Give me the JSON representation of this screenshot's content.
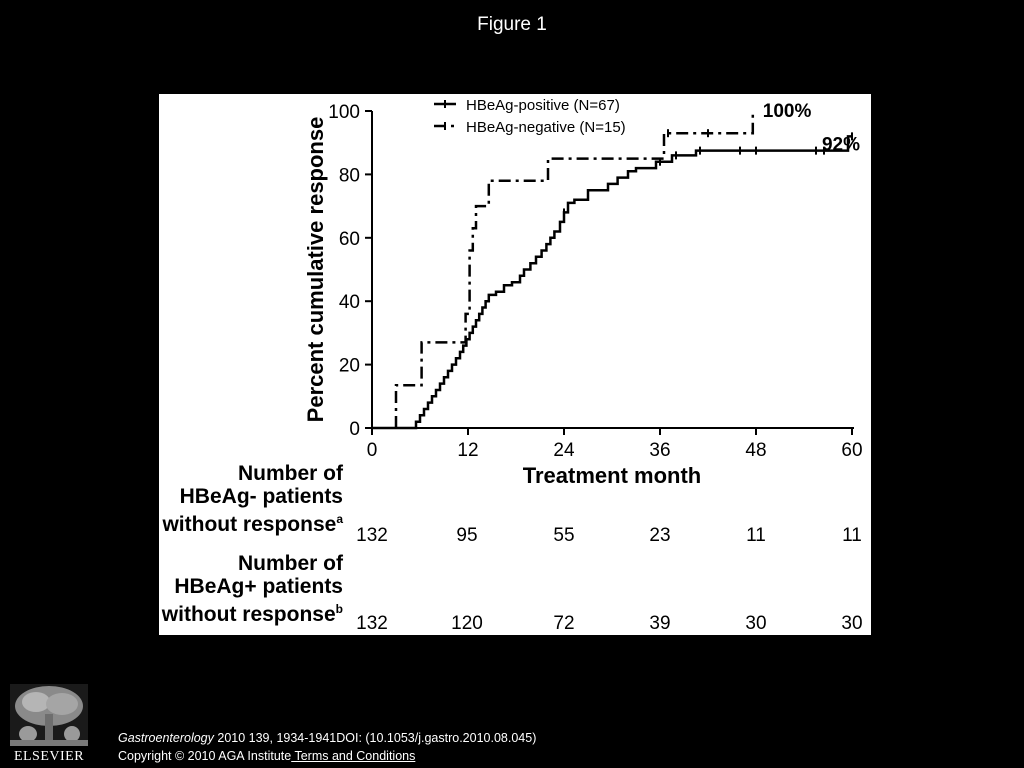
{
  "slide": {
    "title": "Figure 1"
  },
  "chart_data": {
    "type": "line",
    "xlabel": "Treatment month",
    "ylabel": "Percent cumulative response",
    "xlim": [
      0,
      60
    ],
    "ylim": [
      0,
      100
    ],
    "x_ticks": [
      "0",
      "12",
      "24",
      "36",
      "48",
      "60"
    ],
    "y_ticks": [
      "0",
      "20",
      "40",
      "60",
      "80",
      "100"
    ],
    "legend_position": "top-left",
    "series": [
      {
        "name": "HBeAg-positive (N=67)",
        "style": "solid",
        "end_label": "92%",
        "points": [
          [
            0,
            0
          ],
          [
            5.5,
            0
          ],
          [
            5.5,
            2
          ],
          [
            6,
            2
          ],
          [
            6,
            4
          ],
          [
            6.5,
            4
          ],
          [
            6.5,
            6
          ],
          [
            7,
            6
          ],
          [
            7,
            8
          ],
          [
            7.5,
            8
          ],
          [
            7.5,
            10
          ],
          [
            8,
            10
          ],
          [
            8,
            12
          ],
          [
            8.5,
            12
          ],
          [
            8.5,
            14
          ],
          [
            9,
            14
          ],
          [
            9,
            16
          ],
          [
            9.5,
            16
          ],
          [
            9.5,
            18
          ],
          [
            10,
            18
          ],
          [
            10,
            20
          ],
          [
            10.5,
            20
          ],
          [
            10.5,
            22
          ],
          [
            11,
            22
          ],
          [
            11,
            24
          ],
          [
            11.4,
            24
          ],
          [
            11.4,
            26
          ],
          [
            11.8,
            26
          ],
          [
            11.8,
            28
          ],
          [
            12.2,
            28
          ],
          [
            12.2,
            30
          ],
          [
            12.6,
            30
          ],
          [
            12.6,
            32
          ],
          [
            13,
            32
          ],
          [
            13,
            34
          ],
          [
            13.4,
            34
          ],
          [
            13.4,
            36
          ],
          [
            13.8,
            36
          ],
          [
            13.8,
            38
          ],
          [
            14.2,
            38
          ],
          [
            14.2,
            40
          ],
          [
            14.6,
            40
          ],
          [
            14.6,
            42
          ],
          [
            15.5,
            42
          ],
          [
            15.5,
            43
          ],
          [
            16.5,
            43
          ],
          [
            16.5,
            45
          ],
          [
            17.5,
            45
          ],
          [
            17.5,
            46
          ],
          [
            18.5,
            46
          ],
          [
            18.5,
            48
          ],
          [
            19,
            48
          ],
          [
            19,
            50
          ],
          [
            19.8,
            50
          ],
          [
            19.8,
            52
          ],
          [
            20.5,
            52
          ],
          [
            20.5,
            54
          ],
          [
            21.2,
            54
          ],
          [
            21.2,
            56
          ],
          [
            21.8,
            56
          ],
          [
            21.8,
            58
          ],
          [
            22.3,
            58
          ],
          [
            22.3,
            60
          ],
          [
            22.8,
            60
          ],
          [
            22.8,
            62
          ],
          [
            23.5,
            62
          ],
          [
            23.5,
            65
          ],
          [
            24,
            65
          ],
          [
            24,
            68
          ],
          [
            24.5,
            68
          ],
          [
            24.5,
            71
          ],
          [
            25.3,
            71
          ],
          [
            25.3,
            72
          ],
          [
            27,
            72
          ],
          [
            27,
            75
          ],
          [
            29.5,
            75
          ],
          [
            29.5,
            77
          ],
          [
            30.7,
            77
          ],
          [
            30.7,
            79
          ],
          [
            32,
            79
          ],
          [
            32,
            81
          ],
          [
            33,
            81
          ],
          [
            33,
            82
          ],
          [
            35.5,
            82
          ],
          [
            35.5,
            84
          ],
          [
            37.5,
            84
          ],
          [
            37.5,
            86
          ],
          [
            40.5,
            86
          ],
          [
            40.5,
            87.5
          ],
          [
            59.5,
            87.5
          ],
          [
            59.5,
            92
          ],
          [
            60,
            92
          ]
        ]
      },
      {
        "name": "HBeAg-negative (N=15)",
        "style": "dash-dot",
        "end_label": "100%",
        "points": [
          [
            3,
            0
          ],
          [
            3,
            13.5
          ],
          [
            6.2,
            13.5
          ],
          [
            6.2,
            27
          ],
          [
            11.7,
            27
          ],
          [
            11.7,
            36
          ],
          [
            12.2,
            36
          ],
          [
            12.2,
            56
          ],
          [
            12.6,
            56
          ],
          [
            12.6,
            63
          ],
          [
            13,
            63
          ],
          [
            13,
            70
          ],
          [
            14.6,
            70
          ],
          [
            14.6,
            78
          ],
          [
            22,
            78
          ],
          [
            22,
            85
          ],
          [
            36.5,
            85
          ],
          [
            36.5,
            93
          ],
          [
            47.6,
            93
          ],
          [
            47.6,
            100
          ]
        ]
      }
    ],
    "censor_ticks": [
      {
        "series": 0,
        "x": [
          24,
          36,
          38,
          41,
          46,
          48,
          55.5,
          56.5,
          60
        ]
      },
      {
        "series": 1,
        "x": [
          37,
          42
        ]
      }
    ]
  },
  "risk_table": {
    "rows": [
      {
        "label_lines": [
          "Number of",
          "HBeAg- patients",
          "without response"
        ],
        "superscript": "a",
        "values": [
          "132",
          "95",
          "55",
          "23",
          "11",
          "11"
        ]
      },
      {
        "label_lines": [
          "Number of",
          "HBeAg+ patients",
          "without response"
        ],
        "superscript": "b",
        "values": [
          "132",
          "120",
          "72",
          "39",
          "30",
          "30"
        ]
      }
    ]
  },
  "footer": {
    "journal": "Gastroenterology",
    "citation": " 2010 139, 1934-1941DOI: (10.1053/j.gastro.2010.08.045)",
    "copyright": "Copyright © 2010 AGA Institute",
    "link": " Terms and Conditions"
  },
  "logo": {
    "wordmark": "ELSEVIER",
    "icon": "tree-logo-icon"
  }
}
